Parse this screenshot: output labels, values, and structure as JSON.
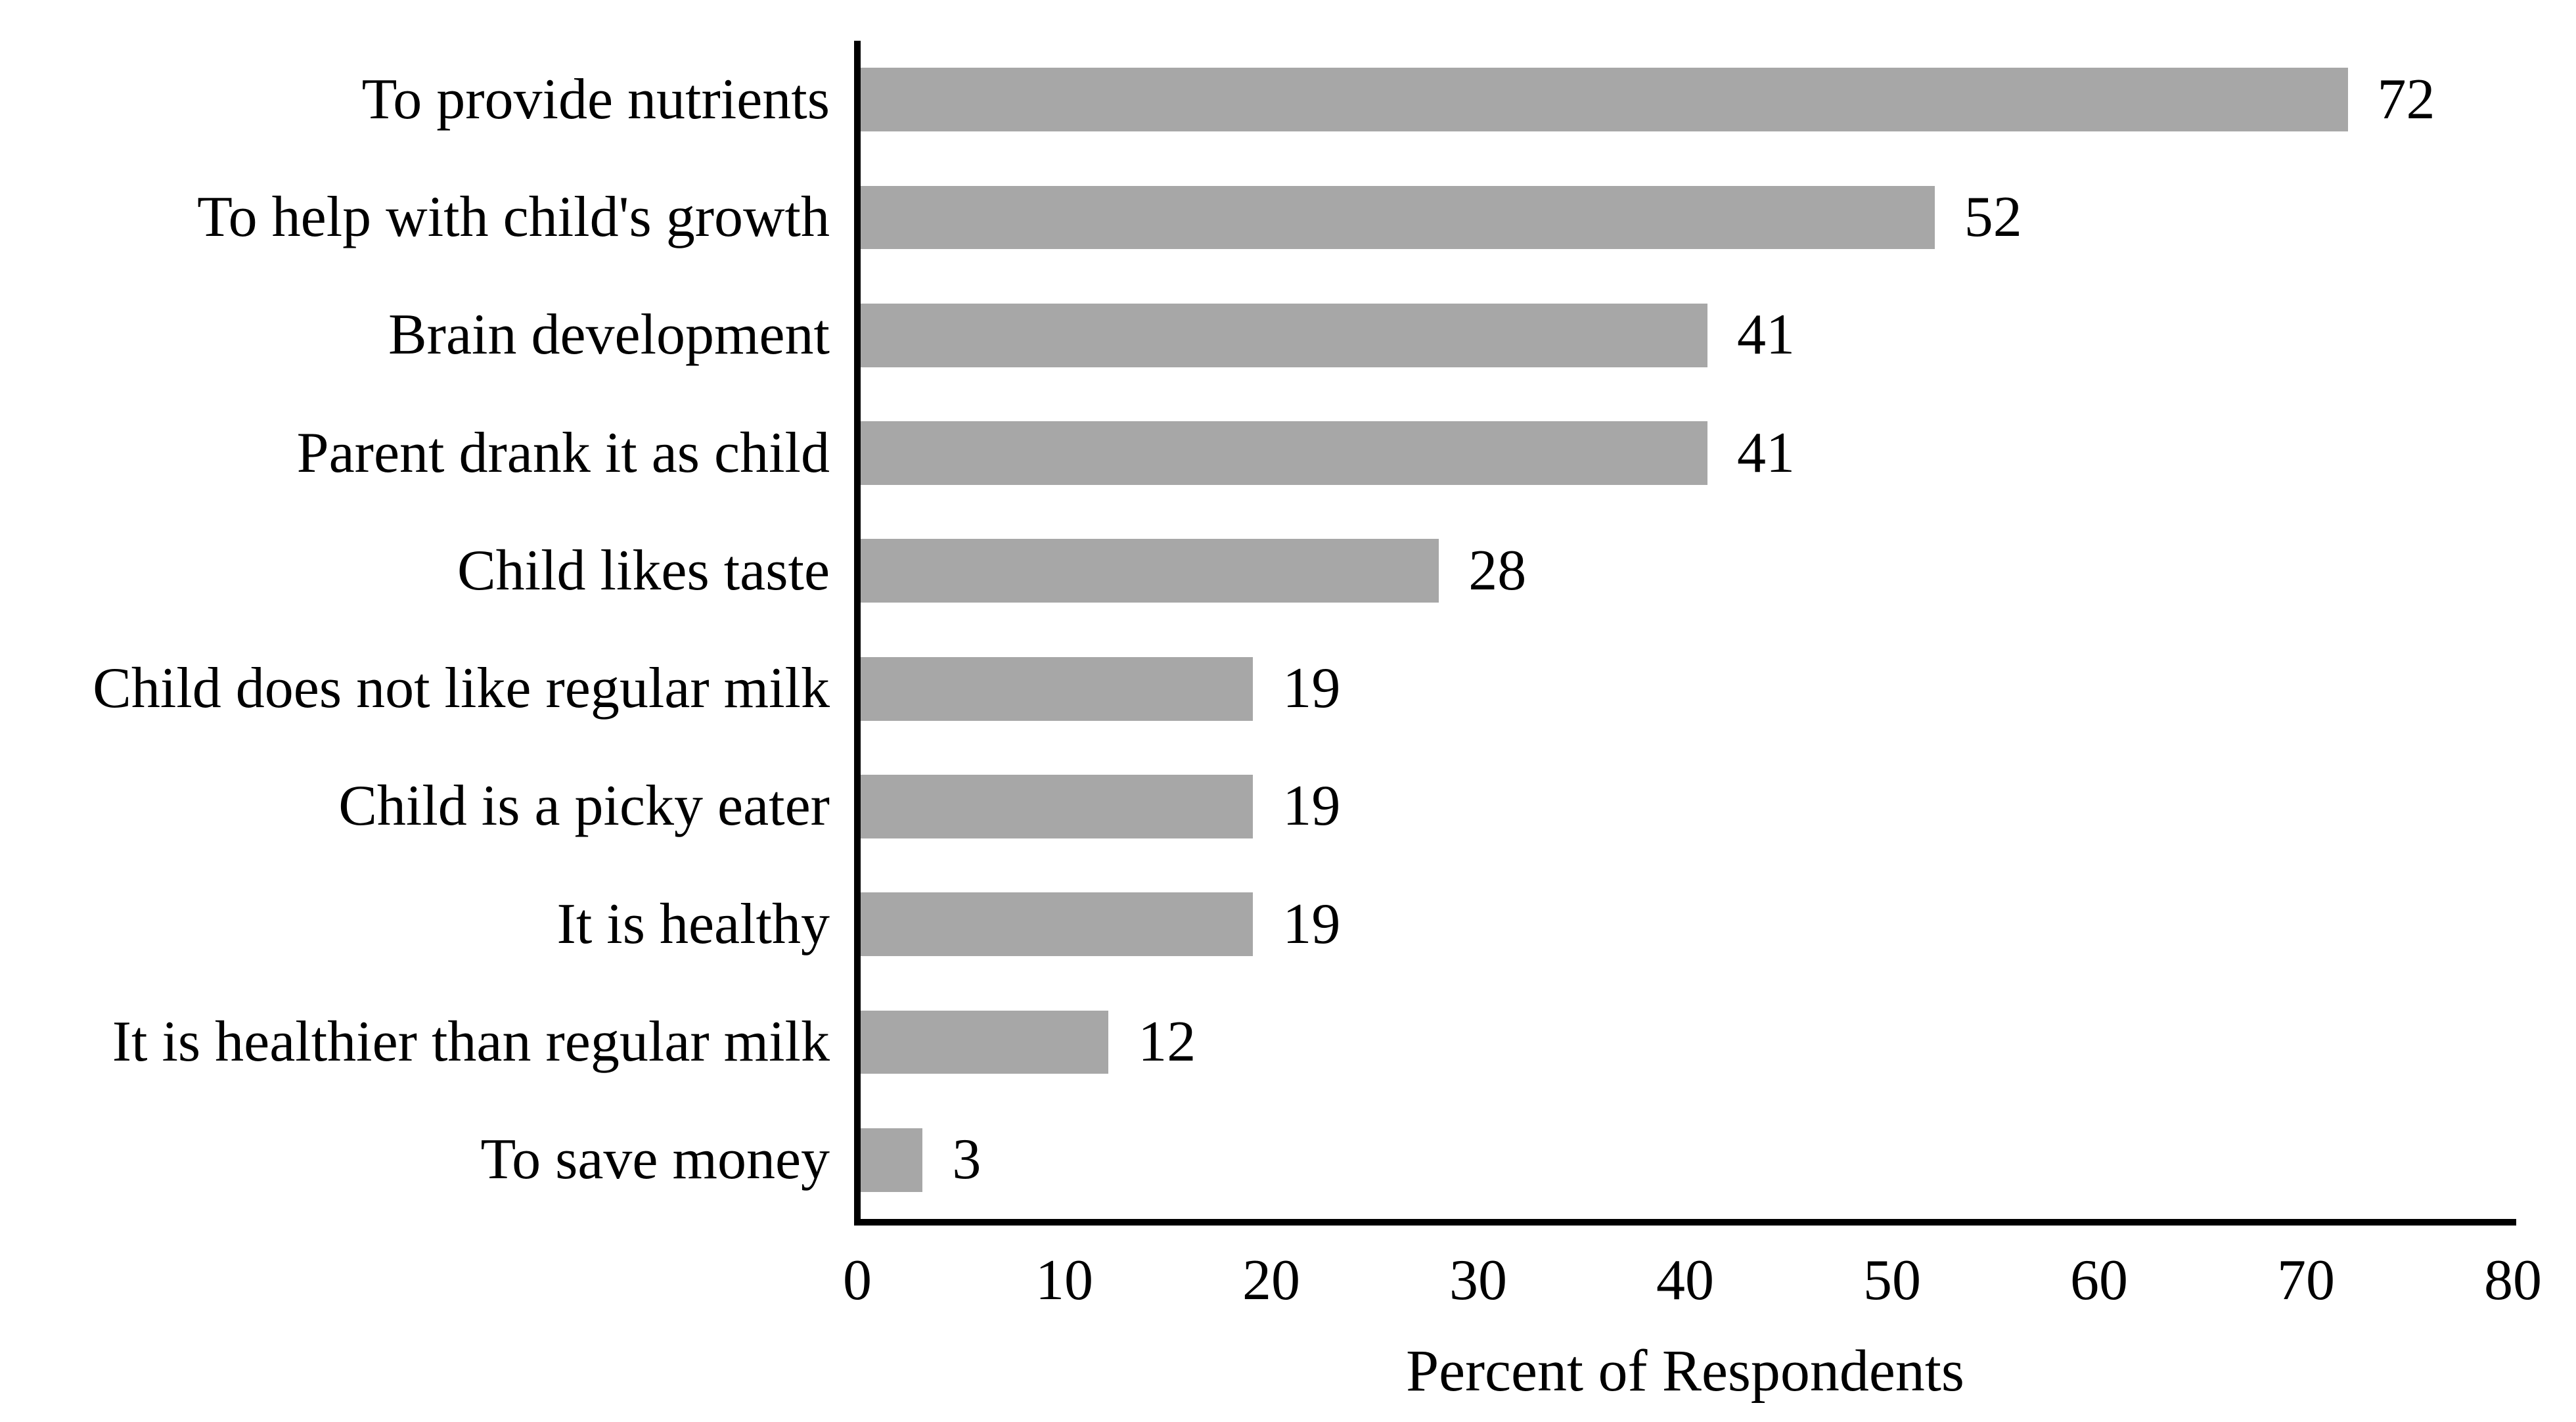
{
  "chart_data": {
    "type": "bar",
    "orientation": "horizontal",
    "title": "",
    "xlabel": "Percent of Respondents",
    "ylabel": "",
    "categories": [
      "To provide nutrients",
      "To help with child's growth",
      "Brain development",
      "Parent drank it as child",
      "Child likes taste",
      "Child does not like regular milk",
      "Child is a picky eater",
      "It is healthy",
      "It is healthier than regular milk",
      "To save money"
    ],
    "values": [
      72,
      52,
      41,
      41,
      28,
      19,
      19,
      19,
      12,
      3
    ],
    "data_labels_shown": true,
    "xlim": [
      0,
      80
    ],
    "x_ticks": [
      0,
      10,
      20,
      30,
      40,
      50,
      60,
      70,
      80
    ],
    "grid": false,
    "legend": false,
    "bar_color": "#A7A7A7",
    "axis_line_color": "#000000",
    "text_color": "#000000",
    "background_color": "#FFFFFF"
  }
}
